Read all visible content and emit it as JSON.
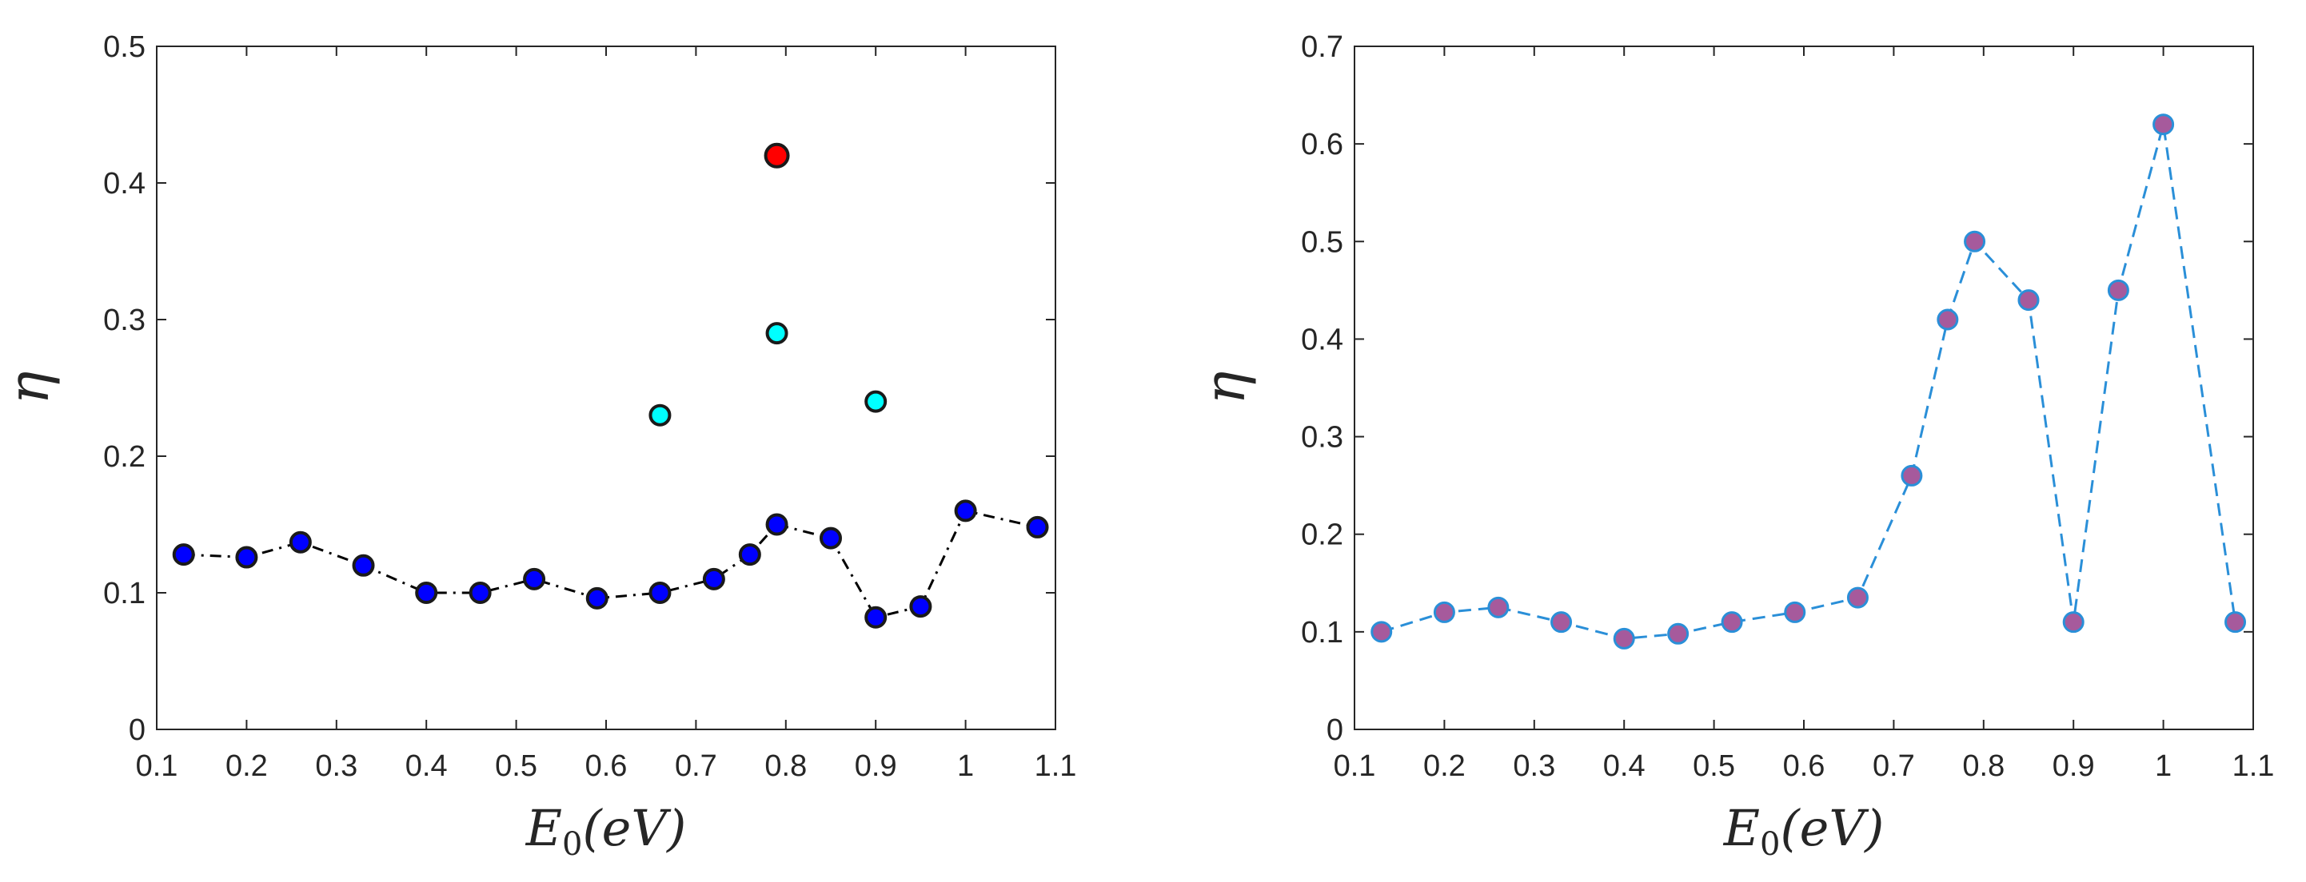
{
  "chart_data": [
    {
      "type": "line",
      "xlabel": "E0(eV)",
      "ylabel": "η",
      "xlim": [
        0.1,
        1.1
      ],
      "ylim": [
        0,
        0.5
      ],
      "xticks": [
        "0.1",
        "0.2",
        "0.3",
        "0.4",
        "0.5",
        "0.6",
        "0.7",
        "0.8",
        "0.9",
        "1",
        "1.1"
      ],
      "yticks": [
        "0",
        "0.1",
        "0.2",
        "0.3",
        "0.4",
        "0.5"
      ],
      "grid": false,
      "series": [
        {
          "style": "dash-dot line with markers",
          "line_color": "#000000",
          "marker_color": "#0000ff",
          "x": [
            0.13,
            0.2,
            0.26,
            0.33,
            0.4,
            0.46,
            0.52,
            0.59,
            0.66,
            0.72,
            0.76,
            0.79,
            0.85,
            0.9,
            0.95,
            1.0,
            1.08
          ],
          "y": [
            0.128,
            0.126,
            0.137,
            0.12,
            0.1,
            0.1,
            0.11,
            0.096,
            0.1,
            0.11,
            0.128,
            0.15,
            0.14,
            0.082,
            0.09,
            0.16,
            0.148
          ]
        },
        {
          "style": "markers only",
          "marker_color": "#00ffff",
          "x": [
            0.66,
            0.79,
            0.9
          ],
          "y": [
            0.23,
            0.29,
            0.24
          ]
        },
        {
          "style": "markers only",
          "marker_color": "#ff0000",
          "x": [
            0.79
          ],
          "y": [
            0.42
          ]
        }
      ]
    },
    {
      "type": "line",
      "xlabel": "E0(eV)",
      "ylabel": "η",
      "xlim": [
        0.1,
        1.1
      ],
      "ylim": [
        0,
        0.7
      ],
      "xticks": [
        "0.1",
        "0.2",
        "0.3",
        "0.4",
        "0.5",
        "0.6",
        "0.7",
        "0.8",
        "0.9",
        "1",
        "1.1"
      ],
      "yticks": [
        "0",
        "0.1",
        "0.2",
        "0.3",
        "0.4",
        "0.5",
        "0.6",
        "0.7"
      ],
      "grid": false,
      "series": [
        {
          "style": "dashed line with markers",
          "line_color": "#2a8fd8",
          "marker_color": "#a65a9c",
          "x": [
            0.13,
            0.2,
            0.26,
            0.33,
            0.4,
            0.46,
            0.52,
            0.59,
            0.66,
            0.72,
            0.76,
            0.79,
            0.85,
            0.9,
            0.95,
            1.0,
            1.08
          ],
          "y": [
            0.1,
            0.12,
            0.125,
            0.11,
            0.093,
            0.098,
            0.11,
            0.12,
            0.135,
            0.26,
            0.42,
            0.5,
            0.44,
            0.11,
            0.45,
            0.62,
            0.11
          ]
        }
      ]
    }
  ]
}
